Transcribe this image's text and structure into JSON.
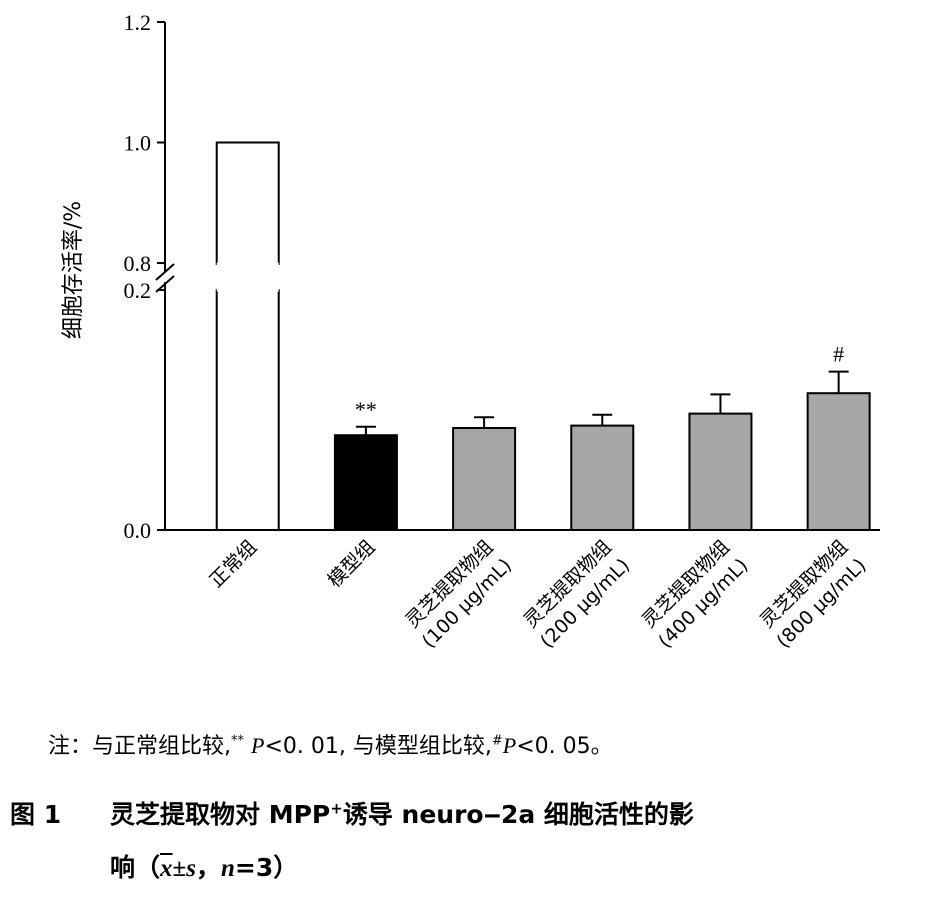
{
  "chart_data": {
    "type": "bar",
    "ylabel": "细胞存活率/%",
    "y_ticks_upper": [
      "1.2",
      "1.0",
      "0.8"
    ],
    "y_ticks_lower": [
      "0.2",
      "0.0"
    ],
    "broken_axis": {
      "lower_range": [
        0,
        0.2
      ],
      "upper_range": [
        0.8,
        1.2
      ]
    },
    "categories": [
      [
        "正常组"
      ],
      [
        "模型组"
      ],
      [
        "灵芝提取物组",
        "(100 μg/mL)"
      ],
      [
        "灵芝提取物组",
        "(200 μg/mL)"
      ],
      [
        "灵芝提取物组",
        "(400 μg/mL)"
      ],
      [
        "灵芝提取物组",
        "(800 μg/mL)"
      ]
    ],
    "values": [
      1.0,
      0.079,
      0.085,
      0.087,
      0.097,
      0.114
    ],
    "errors": [
      0,
      0.007,
      0.009,
      0.009,
      0.016,
      0.018
    ],
    "bar_colors": [
      "#ffffff",
      "#000000",
      "#a6a6a6",
      "#a6a6a6",
      "#a6a6a6",
      "#a6a6a6"
    ],
    "annotations": [
      "",
      "**",
      "",
      "",
      "",
      "#"
    ],
    "grid": false
  },
  "note": {
    "prefix": "注：与正常组比较,",
    "sig1_mark": "**",
    "p_label": "P",
    "sig1_value": "<0. 01,",
    "middle": "与模型组比较,",
    "sig2_mark": "#",
    "sig2_value": "<0. 05。"
  },
  "caption": {
    "fig_label": "图 1",
    "line1_a": "灵芝提取物对 MPP",
    "line1_sup": "+",
    "line1_b": "诱导 neuro‒2a 细胞活性的影",
    "line2_a": "响（",
    "x_bar": "x",
    "pm_s": "±s",
    "sep": "，",
    "n_eq": "n",
    "n_val": "=3）"
  }
}
